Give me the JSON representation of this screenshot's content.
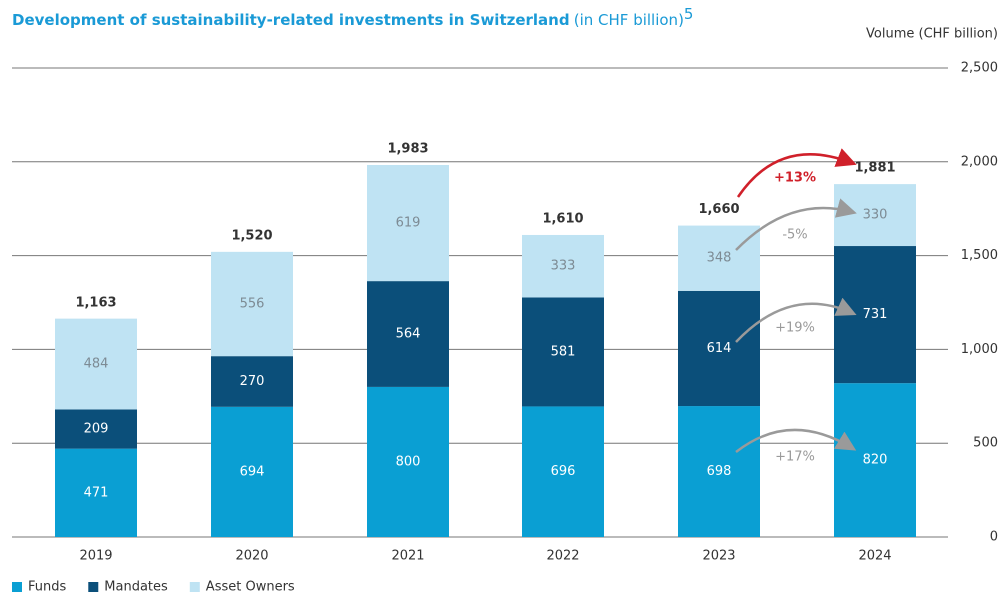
{
  "chart_data": {
    "type": "stacked-bar",
    "title": "Development of sustainability-related investments in Switzerland",
    "subtitle": "(in CHF billion)",
    "title_note": "5",
    "y_axis_label": "Volume (CHF billion)",
    "categories": [
      "2019",
      "2020",
      "2021",
      "2022",
      "2023",
      "2024"
    ],
    "series": [
      {
        "name": "Funds",
        "color": "#0a9fd3",
        "label_color": "#ffffff",
        "values": [
          471,
          694,
          800,
          696,
          698,
          820
        ]
      },
      {
        "name": "Mandates",
        "color": "#0b4f7a",
        "label_color": "#ffffff",
        "values": [
          209,
          270,
          564,
          581,
          614,
          731
        ]
      },
      {
        "name": "Asset Owners",
        "color": "#bfe3f3",
        "label_color": "#7d8b94",
        "values": [
          484,
          556,
          619,
          333,
          348,
          330
        ]
      }
    ],
    "totals": {
      "values": [
        1163,
        1520,
        1983,
        1610,
        1660,
        1881
      ],
      "value_labels": [
        "1,163",
        "1,520",
        "1,983",
        "1,610",
        "1,660",
        "1,881"
      ]
    },
    "annotations": [
      {
        "text": "+13%",
        "color": "#d0202a"
      },
      {
        "text": "-5%",
        "color": "#9a9a9a"
      },
      {
        "text": "+19%",
        "color": "#9a9a9a"
      },
      {
        "text": "+17%",
        "color": "#9a9a9a"
      }
    ],
    "ylim": [
      0,
      2500
    ],
    "yticks": [
      0,
      500,
      {
        "value": 1000,
        "label": "1,000"
      },
      {
        "value": 1500,
        "label": "1,500"
      },
      {
        "value": 2000,
        "label": "2,000"
      },
      {
        "value": 2500,
        "label": "2,500"
      }
    ],
    "grid": true,
    "legend": "bottom-left"
  }
}
